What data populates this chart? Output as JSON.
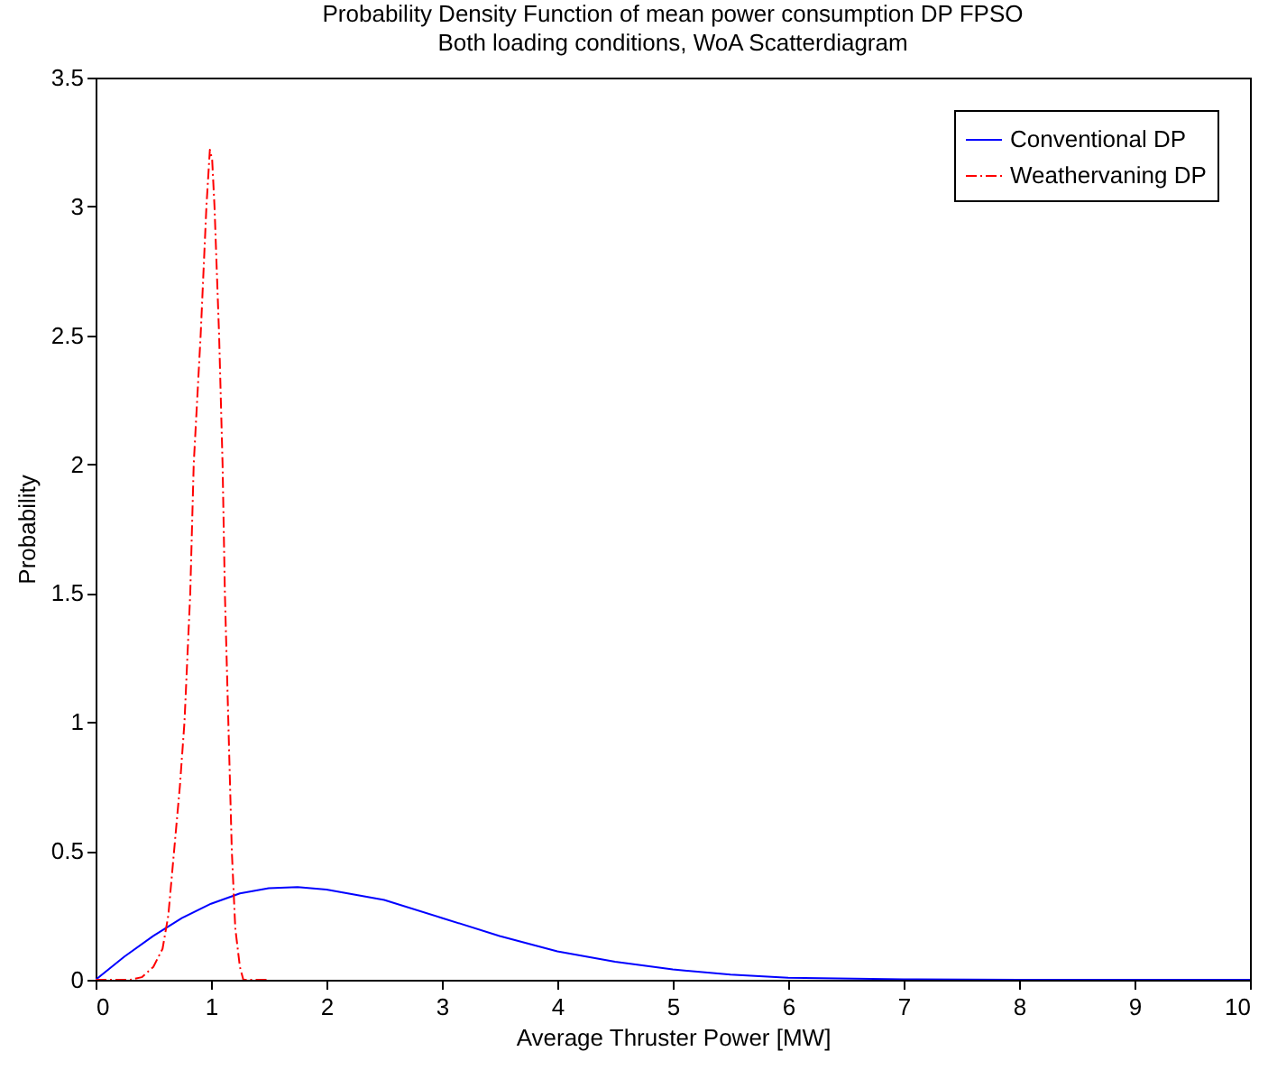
{
  "chart_data": {
    "type": "line",
    "title": [
      "Probability Density Function of mean power consumption DP FPSO",
      "Both loading conditions, WoA Scatterdiagram"
    ],
    "xlabel": "Average Thruster Power [MW]",
    "ylabel": "Probability",
    "xlim": [
      0,
      10
    ],
    "ylim": [
      0,
      3.5
    ],
    "xticks": [
      0,
      1,
      2,
      3,
      4,
      5,
      6,
      7,
      8,
      9,
      10
    ],
    "yticks": [
      0,
      0.5,
      1,
      1.5,
      2,
      2.5,
      3,
      3.5
    ],
    "grid": false,
    "legend": "top right",
    "marker": "none",
    "series": [
      {
        "name": "Conventional DP",
        "color": "#0000ff",
        "line_style": "solid",
        "x": [
          0,
          0.25,
          0.5,
          0.75,
          1,
          1.25,
          1.5,
          1.75,
          2,
          2.5,
          3,
          3.5,
          4,
          4.5,
          5,
          5.5,
          6,
          7,
          8,
          10
        ],
        "values": [
          0,
          0.09,
          0.17,
          0.24,
          0.295,
          0.335,
          0.355,
          0.36,
          0.35,
          0.31,
          0.24,
          0.17,
          0.11,
          0.07,
          0.04,
          0.02,
          0.008,
          0.002,
          0,
          0
        ]
      },
      {
        "name": "Weathervaning DP",
        "color": "#ff0000",
        "line_style": "dashed",
        "x": [
          0,
          0.3,
          0.4,
          0.5,
          0.58,
          0.63,
          0.68,
          0.73,
          0.77,
          0.82,
          0.85,
          0.91,
          0.96,
          0.99,
          1.01,
          1.03,
          1.07,
          1.1,
          1.12,
          1.15,
          1.18,
          1.21,
          1.25,
          1.28,
          1.35,
          1.5
        ],
        "values": [
          0,
          0,
          0.01,
          0.05,
          0.12,
          0.25,
          0.5,
          0.75,
          1,
          1.5,
          2,
          2.5,
          3,
          3.22,
          3.18,
          3,
          2.5,
          2,
          1.5,
          1,
          0.5,
          0.2,
          0.05,
          0,
          0,
          0
        ]
      }
    ]
  }
}
